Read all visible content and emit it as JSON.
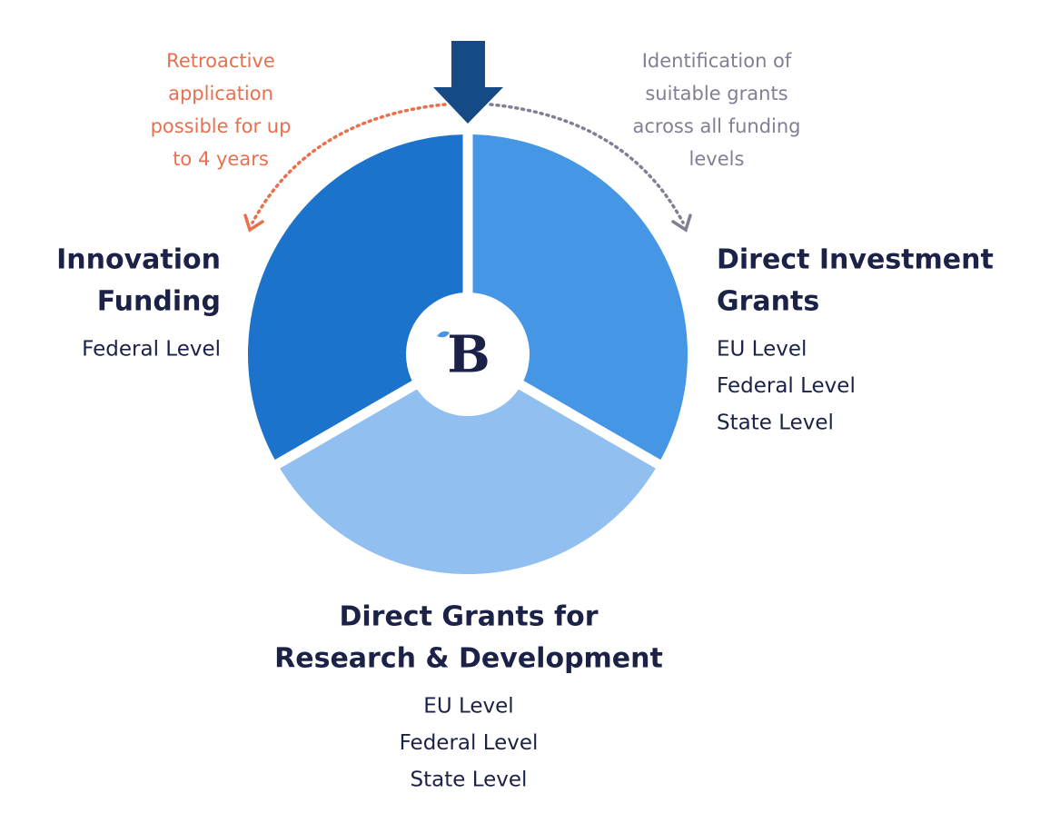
{
  "annotations": [
    {
      "lines": [
        "Retroactive",
        "application",
        "possible for up",
        "to 4 years"
      ]
    },
    {
      "lines": [
        "Identification of",
        "suitable grants",
        "across all funding",
        "levels"
      ]
    }
  ],
  "logo": {
    "letter": "B"
  },
  "segments": [
    {
      "title": [
        "Innovation",
        "Funding"
      ],
      "levels": [
        "Federal Level"
      ]
    },
    {
      "title": [
        "Direct Investment",
        "Grants"
      ],
      "levels": [
        "EU Level",
        "Federal Level",
        "State Level"
      ]
    },
    {
      "title": [
        "Direct Grants for",
        "Research & Development"
      ],
      "levels": [
        "EU Level",
        "Federal Level",
        "State Level"
      ]
    }
  ]
}
